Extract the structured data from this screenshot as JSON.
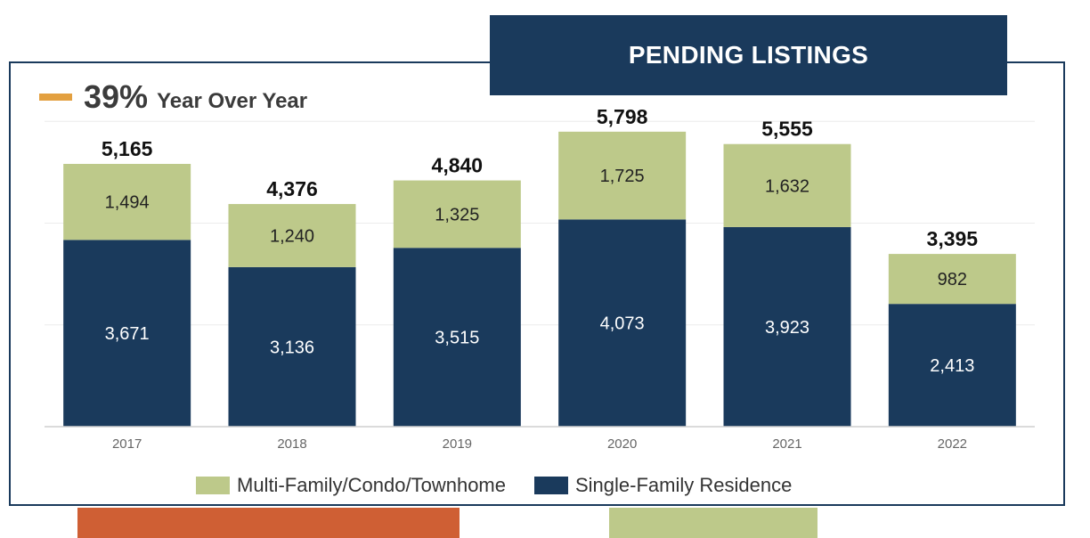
{
  "title": "PENDING LISTINGS",
  "yoy": {
    "percent": "39%",
    "label": "Year Over Year",
    "marker_color": "#e3a040"
  },
  "colors": {
    "single": "#1a3a5c",
    "multi": "#bdc98a",
    "accent_orange": "#cf5f34"
  },
  "legend": {
    "multi": "Multi-Family/Condo/Townhome",
    "single": "Single-Family Residence"
  },
  "chart_data": {
    "type": "bar",
    "stacked": true,
    "categories": [
      "2017",
      "2018",
      "2019",
      "2020",
      "2021",
      "2022"
    ],
    "series": [
      {
        "name": "Single-Family Residence",
        "values": [
          3671,
          3136,
          3515,
          4073,
          3923,
          2413
        ],
        "labels": [
          "3,671",
          "3,136",
          "3,515",
          "4,073",
          "3,923",
          "2,413"
        ]
      },
      {
        "name": "Multi-Family/Condo/Townhome",
        "values": [
          1494,
          1240,
          1325,
          1725,
          1632,
          982
        ],
        "labels": [
          "1,494",
          "1,240",
          "1,325",
          "1,725",
          "1,632",
          "982"
        ]
      }
    ],
    "totals": [
      5165,
      4376,
      4840,
      5798,
      5555,
      3395
    ],
    "total_labels": [
      "5,165",
      "4,376",
      "4,840",
      "5,798",
      "5,555",
      "3,395"
    ],
    "ylim": [
      0,
      6000
    ],
    "grid": true,
    "legend_position": "bottom"
  }
}
